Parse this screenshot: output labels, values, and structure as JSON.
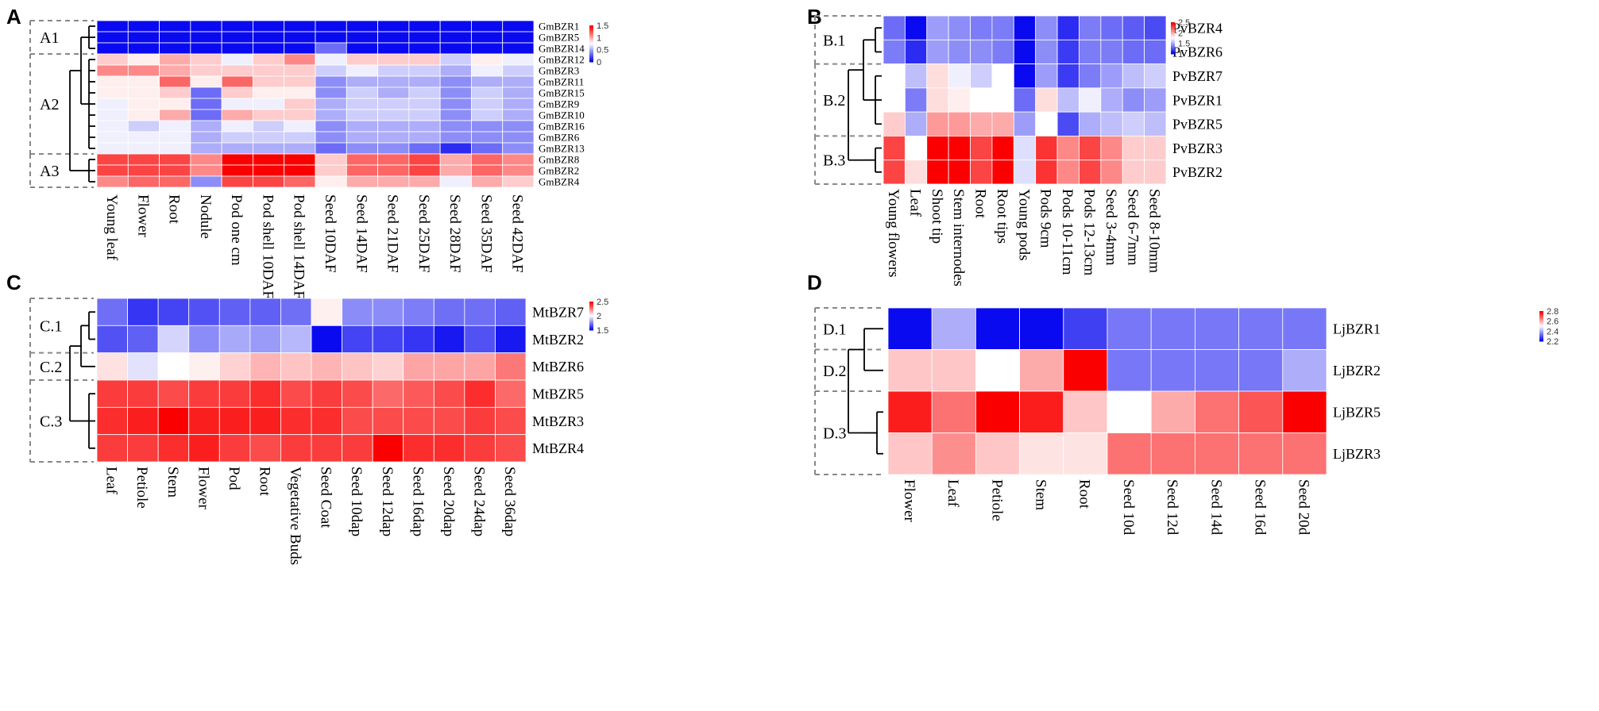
{
  "chart_data": [
    {
      "type": "heatmap",
      "panel_label": "A",
      "rows": [
        "GmBZR1",
        "GmBZR5",
        "GmBZR14",
        "GmBZR12",
        "GmBZR3",
        "GmBZR11",
        "GmBZR15",
        "GmBZR9",
        "GmBZR10",
        "GmBZR16",
        "GmBZR6",
        "GmBZR13",
        "GmBZR8",
        "GmBZR2",
        "GmBZR4"
      ],
      "columns": [
        "Young leaf",
        "Flower",
        "Root",
        "Nodule",
        "Pod one cm",
        "Pod shell 10DAF",
        "Pod shell 14DAF",
        "Seed 10DAF",
        "Seed 14DAF",
        "Seed 21DAF",
        "Seed 25DAF",
        "Seed 28DAF",
        "Seed 35DAF",
        "Seed 42DAF"
      ],
      "values": [
        [
          0,
          0,
          0,
          0,
          0,
          0,
          0,
          0,
          0,
          0,
          0,
          0,
          0,
          0
        ],
        [
          0,
          0,
          0,
          0,
          0,
          0,
          0,
          0,
          0,
          0,
          0,
          0,
          0,
          0
        ],
        [
          0,
          0,
          0,
          0,
          0,
          0,
          0,
          0.3,
          0,
          0,
          0,
          0,
          0,
          0
        ],
        [
          0.9,
          0.8,
          1.0,
          0.9,
          0.7,
          0.9,
          1.1,
          0.7,
          0.9,
          0.9,
          0.9,
          0.6,
          0.8,
          0.7
        ],
        [
          1.1,
          1.1,
          1.0,
          0.9,
          0.9,
          0.9,
          0.9,
          0.6,
          0.7,
          0.6,
          0.6,
          0.5,
          0.7,
          0.6
        ],
        [
          0.8,
          0.8,
          1.2,
          0.8,
          1.2,
          0.9,
          0.9,
          0.4,
          0.5,
          0.5,
          0.5,
          0.4,
          0.5,
          0.5
        ],
        [
          0.8,
          0.8,
          0.9,
          0.3,
          0.9,
          0.8,
          0.8,
          0.4,
          0.6,
          0.5,
          0.6,
          0.4,
          0.6,
          0.5
        ],
        [
          0.7,
          0.8,
          0.8,
          0.3,
          0.7,
          0.7,
          0.9,
          0.5,
          0.6,
          0.6,
          0.6,
          0.4,
          0.6,
          0.5
        ],
        [
          0.7,
          0.8,
          1.0,
          0.3,
          1.0,
          0.9,
          0.9,
          0.5,
          0.6,
          0.6,
          0.6,
          0.4,
          0.6,
          0.5
        ],
        [
          0.7,
          0.6,
          0.7,
          0.5,
          0.7,
          0.6,
          0.7,
          0.4,
          0.5,
          0.5,
          0.5,
          0.4,
          0.4,
          0.4
        ],
        [
          0.7,
          0.7,
          0.7,
          0.5,
          0.6,
          0.6,
          0.6,
          0.4,
          0.5,
          0.5,
          0.5,
          0.4,
          0.4,
          0.4
        ],
        [
          0.7,
          0.7,
          0.7,
          0.5,
          0.5,
          0.5,
          0.5,
          0.3,
          0.4,
          0.4,
          0.3,
          0.1,
          0.3,
          0.4
        ],
        [
          1.3,
          1.3,
          1.3,
          1.1,
          1.5,
          1.5,
          1.5,
          0.9,
          1.2,
          1.2,
          1.3,
          1.0,
          1.2,
          1.1
        ],
        [
          1.3,
          1.3,
          1.3,
          1.1,
          1.5,
          1.5,
          1.5,
          0.9,
          1.2,
          1.2,
          1.3,
          1.0,
          1.2,
          1.1
        ],
        [
          1.1,
          1.2,
          1.2,
          0.4,
          1.3,
          1.3,
          1.2,
          0.8,
          1.0,
          1.0,
          1.0,
          0.7,
          1.0,
          0.9
        ]
      ],
      "scale": {
        "min": 0,
        "max": 1.5,
        "ticks": [
          "1.5",
          "1",
          "0.5",
          "0"
        ]
      },
      "clusters": [
        "A1",
        "A2",
        "A3"
      ]
    },
    {
      "type": "heatmap",
      "panel_label": "B",
      "rows": [
        "PvBZR4",
        "PvBZR6",
        "PvBZR7",
        "PvBZR1",
        "PvBZR5",
        "PvBZR3",
        "PvBZR2"
      ],
      "columns": [
        "Young flowers",
        "Leaf",
        "Shoot tip",
        "Stem internodes",
        "Root",
        "Root tips",
        "Young pods",
        "Pods 9cm",
        "Pods 10-11cm",
        "Pods 12-13cm",
        "Seed 3-4mm",
        "Seed 6-7mm",
        "Seed 8-10mm"
      ],
      "values": [
        [
          1.3,
          1.0,
          1.45,
          1.4,
          1.35,
          1.35,
          1.0,
          1.4,
          1.1,
          1.35,
          1.3,
          1.25,
          1.2
        ],
        [
          1.35,
          1.1,
          1.45,
          1.4,
          1.4,
          1.35,
          1.0,
          1.4,
          1.15,
          1.35,
          1.35,
          1.3,
          1.3
        ],
        [
          1.75,
          1.55,
          1.85,
          1.7,
          1.6,
          1.75,
          1.0,
          1.45,
          1.15,
          1.35,
          1.45,
          1.55,
          1.6
        ],
        [
          1.75,
          1.35,
          1.85,
          1.8,
          1.75,
          1.75,
          1.3,
          1.85,
          1.55,
          1.7,
          1.5,
          1.4,
          1.45
        ],
        [
          1.9,
          1.5,
          2.05,
          2.05,
          2.0,
          2.0,
          1.45,
          1.75,
          1.2,
          1.5,
          1.55,
          1.6,
          1.55
        ],
        [
          2.3,
          1.75,
          2.5,
          2.5,
          2.3,
          2.5,
          1.65,
          2.35,
          2.1,
          2.3,
          2.1,
          1.9,
          1.9
        ],
        [
          2.3,
          1.85,
          2.5,
          2.5,
          2.3,
          2.5,
          1.65,
          2.35,
          2.1,
          2.3,
          2.1,
          1.9,
          1.9
        ]
      ],
      "scale": {
        "min": 1,
        "max": 2.5,
        "ticks": [
          "2.5",
          "2",
          "1.5",
          "1"
        ]
      },
      "clusters": [
        "B.1",
        "B.2",
        "B.3"
      ]
    },
    {
      "type": "heatmap",
      "panel_label": "C",
      "rows": [
        "MtBZR7",
        "MtBZR2",
        "MtBZR6",
        "MtBZR5",
        "MtBZR3",
        "MtBZR4"
      ],
      "columns": [
        "Leaf",
        "Petiole",
        "Stem",
        "Flower",
        "Pod",
        "Root",
        "Vegetative Buds",
        "Seed Coat",
        "Seed 10dap",
        "Seed 12dap",
        "Seed 16dap",
        "Seed 20dap",
        "Seed 24dap",
        "Seed 36dap"
      ],
      "values": [
        [
          1.35,
          1.15,
          1.2,
          1.25,
          1.3,
          1.3,
          1.35,
          1.9,
          1.45,
          1.45,
          1.4,
          1.35,
          1.35,
          1.3
        ],
        [
          1.25,
          1.3,
          1.7,
          1.45,
          1.55,
          1.5,
          1.6,
          1.0,
          1.2,
          1.2,
          1.15,
          1.05,
          1.25,
          1.05
        ],
        [
          1.95,
          1.75,
          1.85,
          1.9,
          2.0,
          2.1,
          2.05,
          2.1,
          2.05,
          2.0,
          2.15,
          2.15,
          2.15,
          2.3
        ],
        [
          2.5,
          2.5,
          2.45,
          2.5,
          2.5,
          2.55,
          2.45,
          2.5,
          2.45,
          2.35,
          2.4,
          2.45,
          2.55,
          2.35
        ],
        [
          2.55,
          2.6,
          2.7,
          2.6,
          2.6,
          2.6,
          2.55,
          2.55,
          2.45,
          2.45,
          2.45,
          2.45,
          2.5,
          2.45
        ],
        [
          2.5,
          2.5,
          2.55,
          2.6,
          2.5,
          2.45,
          2.5,
          2.5,
          2.5,
          2.7,
          2.55,
          2.55,
          2.5,
          2.45
        ]
      ],
      "scale": {
        "min": 1,
        "max": 2.7,
        "ticks": [
          "2.5",
          "2",
          "1.5"
        ]
      },
      "clusters": [
        "C.1",
        "C.2",
        "C.3"
      ]
    },
    {
      "type": "heatmap",
      "panel_label": "D",
      "rows": [
        "LjBZR1",
        "LjBZR2",
        "LjBZR5",
        "LjBZR3"
      ],
      "columns": [
        "Flower",
        "Leaf",
        "Petiole",
        "Stem",
        "Root",
        "Seed 10d",
        "Seed 12d",
        "Seed 14d",
        "Seed 16d",
        "Seed 20d"
      ],
      "values": [
        [
          2.0,
          2.3,
          2.0,
          2.0,
          2.1,
          2.2,
          2.2,
          2.2,
          2.2,
          2.2
        ],
        [
          2.55,
          2.55,
          2.45,
          2.6,
          2.9,
          2.2,
          2.2,
          2.2,
          2.2,
          2.3
        ],
        [
          2.85,
          2.7,
          2.9,
          2.85,
          2.55,
          2.45,
          2.6,
          2.7,
          2.75,
          2.95
        ],
        [
          2.55,
          2.65,
          2.55,
          2.5,
          2.5,
          2.7,
          2.7,
          2.7,
          2.7,
          2.7
        ]
      ],
      "scale": {
        "min": 2.0,
        "max": 2.9,
        "ticks": [
          "2.8",
          "2.6",
          "2.4",
          "2.2"
        ]
      },
      "clusters": [
        "D.1",
        "D.2",
        "D.3"
      ]
    }
  ]
}
